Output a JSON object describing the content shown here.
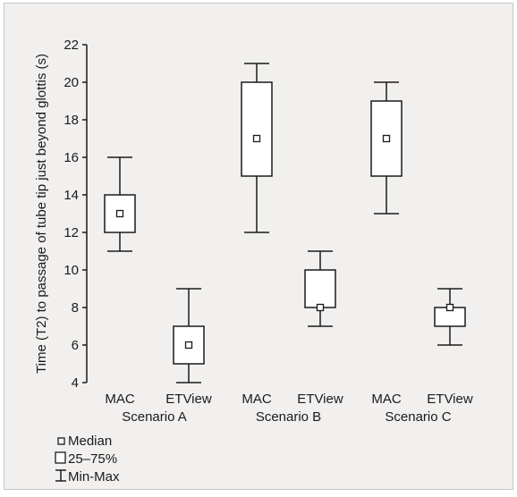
{
  "chart_data": {
    "type": "box",
    "ylabel": "Time (T2) to passage of tube tip just beyond glottis (s)",
    "ylim": [
      4,
      22
    ],
    "yticks": [
      4,
      6,
      8,
      10,
      12,
      14,
      16,
      18,
      20,
      22
    ],
    "groups": [
      {
        "label": "Scenario A",
        "categories": [
          "MAC",
          "ETView"
        ]
      },
      {
        "label": "Scenario B",
        "categories": [
          "MAC",
          "ETView"
        ]
      },
      {
        "label": "Scenario C",
        "categories": [
          "MAC",
          "ETView"
        ]
      }
    ],
    "boxes": [
      {
        "category": "MAC",
        "group": "Scenario A",
        "min": 11,
        "q1": 12,
        "median": 13,
        "q3": 14,
        "max": 16
      },
      {
        "category": "ETView",
        "group": "Scenario A",
        "min": 4,
        "q1": 5,
        "median": 6,
        "q3": 7,
        "max": 9
      },
      {
        "category": "MAC",
        "group": "Scenario B",
        "min": 12,
        "q1": 15,
        "median": 17,
        "q3": 20,
        "max": 21
      },
      {
        "category": "ETView",
        "group": "Scenario B",
        "min": 7,
        "q1": 8,
        "median": 8,
        "q3": 10,
        "max": 11
      },
      {
        "category": "MAC",
        "group": "Scenario C",
        "min": 13,
        "q1": 15,
        "median": 17,
        "q3": 19,
        "max": 20
      },
      {
        "category": "ETView",
        "group": "Scenario C",
        "min": 6,
        "q1": 7,
        "median": 8,
        "q3": 8,
        "max": 9
      }
    ],
    "legend": {
      "position": "bottom-left",
      "entries": [
        {
          "symbol": "small-square",
          "label": "Median"
        },
        {
          "symbol": "box",
          "label": "25–75%"
        },
        {
          "symbol": "whisker",
          "label": "Min-Max"
        }
      ]
    },
    "grid": false,
    "colors": {
      "background": "#f2f0ef",
      "stroke": "#1a1a1a"
    }
  }
}
